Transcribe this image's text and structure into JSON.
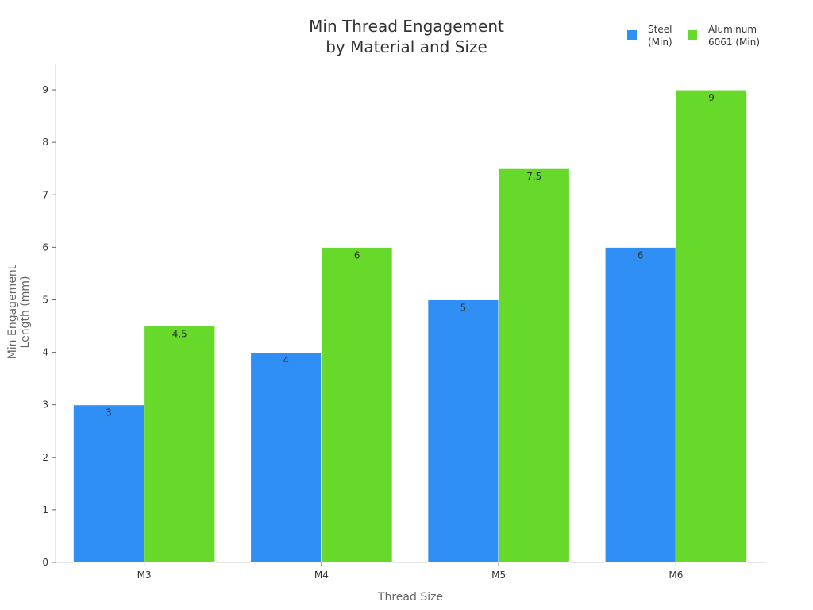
{
  "chart_data": {
    "type": "bar",
    "title_lines": [
      "Min Thread Engagement",
      "by Material and Size"
    ],
    "xlabel": "Thread Size",
    "ylabel_lines": [
      "Min Engagement",
      "Length (mm)"
    ],
    "categories": [
      "M3",
      "M4",
      "M5",
      "M6"
    ],
    "ylim": [
      0,
      9.5
    ],
    "yticks": [
      0,
      1,
      2,
      3,
      4,
      5,
      6,
      7,
      8,
      9
    ],
    "grid": false,
    "legend_position": "top-right",
    "series": [
      {
        "name_lines": [
          "Steel",
          "(Min)"
        ],
        "color": "#2f8ff5",
        "values": [
          3,
          4,
          5,
          6
        ],
        "labels": [
          "3",
          "4",
          "5",
          "6"
        ]
      },
      {
        "name_lines": [
          "Aluminum",
          "6061 (Min)"
        ],
        "color": "#66d92b",
        "values": [
          4.5,
          6,
          7.5,
          9
        ],
        "labels": [
          "4.5",
          "6",
          "7.5",
          "9"
        ]
      }
    ]
  }
}
